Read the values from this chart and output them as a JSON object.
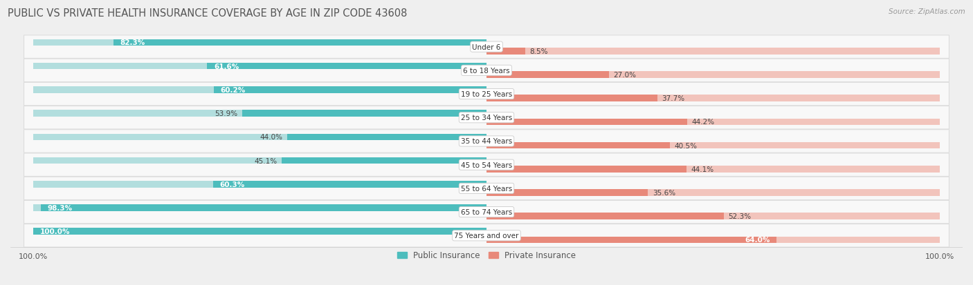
{
  "title": "PUBLIC VS PRIVATE HEALTH INSURANCE COVERAGE BY AGE IN ZIP CODE 43608",
  "source": "Source: ZipAtlas.com",
  "categories": [
    "Under 6",
    "6 to 18 Years",
    "19 to 25 Years",
    "25 to 34 Years",
    "35 to 44 Years",
    "45 to 54 Years",
    "55 to 64 Years",
    "65 to 74 Years",
    "75 Years and over"
  ],
  "public_values": [
    82.3,
    61.6,
    60.2,
    53.9,
    44.0,
    45.1,
    60.3,
    98.3,
    100.0
  ],
  "private_values": [
    8.5,
    27.0,
    37.7,
    44.2,
    40.5,
    44.1,
    35.6,
    52.3,
    64.0
  ],
  "public_color": "#4DBDBD",
  "private_color": "#E8897A",
  "public_color_light": "#B2DEDE",
  "private_color_light": "#F2C4BC",
  "background_color": "#EFEFEF",
  "row_bg_color": "#F8F8F8",
  "title_fontsize": 10.5,
  "label_fontsize": 7.5,
  "value_fontsize": 7.5,
  "max_value": 100.0,
  "legend_public": "Public Insurance",
  "legend_private": "Private Insurance"
}
